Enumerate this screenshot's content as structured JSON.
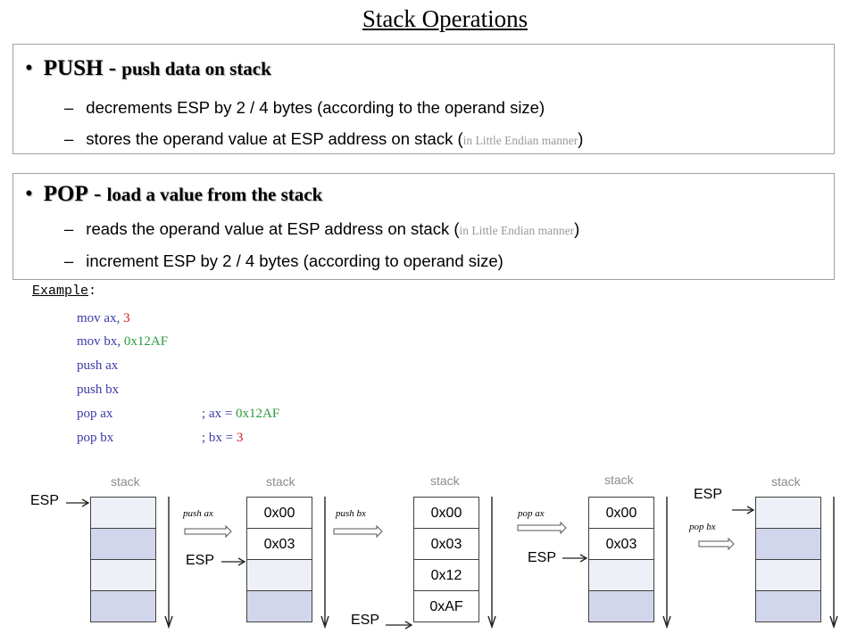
{
  "title": "Stack Operations",
  "push_section": {
    "keyword": "PUSH",
    "separator": " - ",
    "description": "push data on stack",
    "lines": [
      {
        "text": "decrements ESP by 2 / 4 bytes (according to the operand size)",
        "note": ""
      },
      {
        "text": "stores the operand value at ESP address on stack (",
        "note": "in Little Endian manner",
        "close": ")"
      }
    ]
  },
  "pop_section": {
    "keyword": "POP",
    "separator": " - ",
    "description": "load a value from the stack",
    "lines": [
      {
        "text": "reads the operand value at ESP address on stack (",
        "note": "in Little Endian manner",
        "close": ")"
      },
      {
        "text": "increment ESP by 2 / 4 bytes (according to operand size)",
        "note": ""
      }
    ]
  },
  "example": {
    "label": "Example",
    "colon": ":",
    "code": [
      {
        "instr": "mov ",
        "arg1": "ax, ",
        "arg2": "3",
        "comment_pre": "",
        "comment_val": ""
      },
      {
        "instr": "mov ",
        "arg1": "bx, ",
        "arg2": "0x12AF",
        "comment_pre": "",
        "comment_val": ""
      },
      {
        "instr": "push ",
        "arg1": "ax",
        "arg2": "",
        "comment_pre": "",
        "comment_val": ""
      },
      {
        "instr": "push ",
        "arg1": "bx",
        "arg2": "",
        "comment_pre": "",
        "comment_val": ""
      },
      {
        "instr": "pop ",
        "arg1": "ax",
        "arg2": "",
        "comment_pre": "; ax = ",
        "comment_val": "0x12AF"
      },
      {
        "instr": "pop ",
        "arg1": "bx",
        "arg2": "",
        "comment_pre": "; bx = ",
        "comment_val": "3"
      }
    ]
  },
  "diagram": {
    "stack_label": "stack",
    "esp_label": "ESP",
    "stacks": [
      {
        "cells": [
          "",
          "",
          "",
          ""
        ]
      },
      {
        "cells": [
          "0x00",
          "0x03",
          "",
          ""
        ]
      },
      {
        "cells": [
          "0x00",
          "0x03",
          "0x12",
          "0xAF"
        ]
      },
      {
        "cells": [
          "0x00",
          "0x03",
          "",
          ""
        ]
      },
      {
        "cells": [
          "",
          "",
          "",
          ""
        ]
      }
    ],
    "operations": [
      "push ax",
      "push bx",
      "pop ax",
      "pop bx"
    ]
  }
}
